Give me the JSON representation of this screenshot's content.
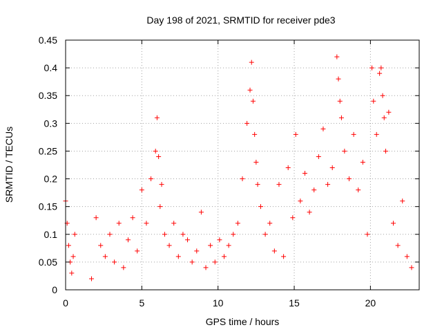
{
  "chart_data": {
    "type": "scatter",
    "title": "Day 198 of 2021, SRMTID for receiver pde3",
    "xlabel": "GPS time / hours",
    "ylabel": "SRMTID / TECUs",
    "xlim": [
      0,
      23.2
    ],
    "ylim": [
      0,
      0.45
    ],
    "xticks": [
      0,
      5,
      10,
      15,
      20
    ],
    "xtick_labels": [
      "0",
      "5",
      "10",
      "15",
      "20"
    ],
    "yticks": [
      0,
      0.05,
      0.1,
      0.15,
      0.2,
      0.25,
      0.3,
      0.35,
      0.4,
      0.45
    ],
    "ytick_labels": [
      "0",
      "0.05",
      "0.1",
      "0.15",
      "0.2",
      "0.25",
      "0.3",
      "0.35",
      "0.4",
      "0.45"
    ],
    "grid": true,
    "marker": "plus",
    "color": "#ff0000",
    "series": [
      {
        "name": "SRMTID",
        "x": [
          0.0,
          0.1,
          0.2,
          0.3,
          0.4,
          0.5,
          0.6,
          1.7,
          2.0,
          2.3,
          2.6,
          2.9,
          3.2,
          3.5,
          3.8,
          4.1,
          4.4,
          4.7,
          5.0,
          5.3,
          5.6,
          5.9,
          6.0,
          6.1,
          6.2,
          6.3,
          6.5,
          6.8,
          7.1,
          7.4,
          7.7,
          8.0,
          8.3,
          8.6,
          8.9,
          9.2,
          9.5,
          9.8,
          10.1,
          10.4,
          10.7,
          11.0,
          11.3,
          11.6,
          11.9,
          12.1,
          12.2,
          12.3,
          12.4,
          12.5,
          12.6,
          12.8,
          13.1,
          13.4,
          13.7,
          14.0,
          14.3,
          14.6,
          14.9,
          15.1,
          15.4,
          15.7,
          16.0,
          16.3,
          16.6,
          16.9,
          17.2,
          17.5,
          17.8,
          17.9,
          18.0,
          18.1,
          18.3,
          18.6,
          18.9,
          19.2,
          19.5,
          19.8,
          20.1,
          20.2,
          20.4,
          20.6,
          20.7,
          20.8,
          20.9,
          21.0,
          21.2,
          21.5,
          21.8,
          22.1,
          22.4,
          22.7
        ],
        "y": [
          0.16,
          0.12,
          0.08,
          0.05,
          0.03,
          0.06,
          0.1,
          0.02,
          0.13,
          0.08,
          0.06,
          0.1,
          0.05,
          0.12,
          0.04,
          0.09,
          0.13,
          0.07,
          0.18,
          0.12,
          0.2,
          0.25,
          0.31,
          0.24,
          0.15,
          0.19,
          0.1,
          0.08,
          0.12,
          0.06,
          0.1,
          0.09,
          0.05,
          0.07,
          0.14,
          0.04,
          0.08,
          0.05,
          0.09,
          0.06,
          0.08,
          0.1,
          0.12,
          0.2,
          0.3,
          0.36,
          0.41,
          0.34,
          0.28,
          0.23,
          0.19,
          0.15,
          0.1,
          0.12,
          0.07,
          0.19,
          0.06,
          0.22,
          0.13,
          0.28,
          0.16,
          0.21,
          0.14,
          0.18,
          0.24,
          0.29,
          0.19,
          0.22,
          0.42,
          0.38,
          0.34,
          0.31,
          0.25,
          0.2,
          0.28,
          0.18,
          0.23,
          0.1,
          0.4,
          0.34,
          0.28,
          0.39,
          0.4,
          0.35,
          0.31,
          0.25,
          0.32,
          0.12,
          0.08,
          0.16,
          0.06,
          0.04
        ]
      }
    ]
  }
}
